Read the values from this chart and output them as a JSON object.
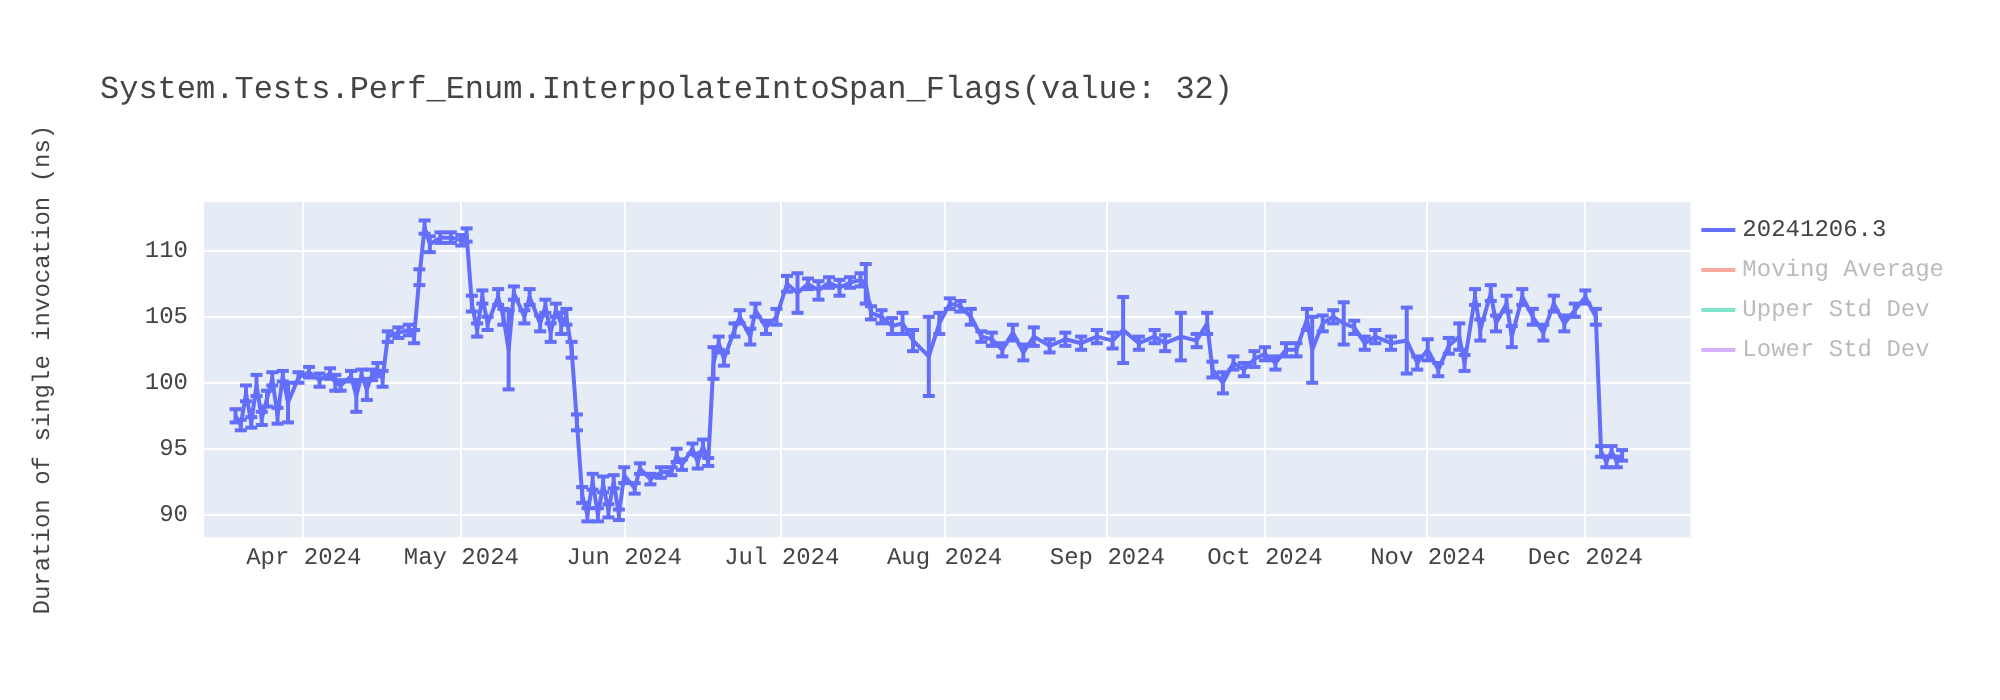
{
  "chart_data": {
    "type": "line",
    "title": "System.Tests.Perf_Enum.InterpolateIntoSpan_Flags(value: 32)",
    "ylabel": "Duration of single invocation (ns)",
    "x": [
      "2024-03-19",
      "2024-03-20",
      "2024-03-21",
      "2024-03-22",
      "2024-03-23",
      "2024-03-24",
      "2024-03-25",
      "2024-03-26",
      "2024-03-27",
      "2024-03-28",
      "2024-03-29",
      "2024-03-31",
      "2024-04-02",
      "2024-04-04",
      "2024-04-06",
      "2024-04-07",
      "2024-04-08",
      "2024-04-10",
      "2024-04-11",
      "2024-04-12",
      "2024-04-13",
      "2024-04-14",
      "2024-04-15",
      "2024-04-16",
      "2024-04-17",
      "2024-04-19",
      "2024-04-21",
      "2024-04-22",
      "2024-04-23",
      "2024-04-24",
      "2024-04-25",
      "2024-04-27",
      "2024-04-29",
      "2024-05-01",
      "2024-05-02",
      "2024-05-03",
      "2024-05-04",
      "2024-05-05",
      "2024-05-06",
      "2024-05-08",
      "2024-05-09",
      "2024-05-10",
      "2024-05-11",
      "2024-05-13",
      "2024-05-14",
      "2024-05-16",
      "2024-05-17",
      "2024-05-18",
      "2024-05-19",
      "2024-05-20",
      "2024-05-21",
      "2024-05-22",
      "2024-05-23",
      "2024-05-24",
      "2024-05-25",
      "2024-05-26",
      "2024-05-27",
      "2024-05-28",
      "2024-05-29",
      "2024-05-30",
      "2024-05-31",
      "2024-06-01",
      "2024-06-03",
      "2024-06-04",
      "2024-06-06",
      "2024-06-08",
      "2024-06-10",
      "2024-06-11",
      "2024-06-12",
      "2024-06-14",
      "2024-06-15",
      "2024-06-16",
      "2024-06-17",
      "2024-06-18",
      "2024-06-19",
      "2024-06-20",
      "2024-06-22",
      "2024-06-23",
      "2024-06-25",
      "2024-06-26",
      "2024-06-28",
      "2024-06-30",
      "2024-07-02",
      "2024-07-04",
      "2024-07-06",
      "2024-07-08",
      "2024-07-10",
      "2024-07-12",
      "2024-07-14",
      "2024-07-16",
      "2024-07-17",
      "2024-07-18",
      "2024-07-20",
      "2024-07-22",
      "2024-07-24",
      "2024-07-26",
      "2024-07-29",
      "2024-07-31",
      "2024-08-02",
      "2024-08-04",
      "2024-08-06",
      "2024-08-08",
      "2024-08-10",
      "2024-08-12",
      "2024-08-14",
      "2024-08-16",
      "2024-08-18",
      "2024-08-21",
      "2024-08-24",
      "2024-08-27",
      "2024-08-30",
      "2024-09-02",
      "2024-09-04",
      "2024-09-07",
      "2024-09-10",
      "2024-09-12",
      "2024-09-15",
      "2024-09-18",
      "2024-09-20",
      "2024-09-21",
      "2024-09-23",
      "2024-09-25",
      "2024-09-27",
      "2024-09-29",
      "2024-10-01",
      "2024-10-03",
      "2024-10-05",
      "2024-10-07",
      "2024-10-09",
      "2024-10-10",
      "2024-10-12",
      "2024-10-14",
      "2024-10-16",
      "2024-10-18",
      "2024-10-20",
      "2024-10-22",
      "2024-10-25",
      "2024-10-28",
      "2024-10-30",
      "2024-11-01",
      "2024-11-03",
      "2024-11-05",
      "2024-11-07",
      "2024-11-08",
      "2024-11-10",
      "2024-11-11",
      "2024-11-13",
      "2024-11-14",
      "2024-11-16",
      "2024-11-17",
      "2024-11-19",
      "2024-11-21",
      "2024-11-23",
      "2024-11-25",
      "2024-11-27",
      "2024-11-29",
      "2024-12-01",
      "2024-12-03",
      "2024-12-04",
      "2024-12-05",
      "2024-12-06",
      "2024-12-07",
      "2024-12-08"
    ],
    "series": [
      {
        "name": "20241206.3",
        "color": "#636efa",
        "values": [
          97.5,
          96.8,
          99.2,
          97.0,
          99.8,
          97.3,
          98.8,
          100.3,
          97.5,
          100.5,
          98.5,
          100.4,
          100.8,
          100.2,
          100.7,
          100.0,
          99.8,
          100.5,
          99.0,
          100.6,
          99.5,
          100.6,
          101.0,
          100.3,
          103.5,
          103.8,
          104.0,
          103.5,
          108.0,
          111.8,
          110.5,
          111.0,
          111.0,
          110.8,
          111.2,
          106.0,
          104.0,
          106.5,
          104.5,
          106.5,
          105.0,
          102.5,
          106.8,
          105.0,
          106.5,
          104.5,
          105.8,
          103.8,
          105.5,
          104.5,
          105.0,
          102.5,
          97.0,
          91.5,
          90.0,
          92.5,
          90.0,
          92.3,
          90.3,
          92.5,
          90.0,
          93.0,
          92.0,
          93.5,
          92.7,
          93.2,
          93.3,
          94.5,
          93.8,
          95.0,
          94.0,
          95.2,
          94.0,
          101.5,
          103.0,
          101.8,
          104.0,
          105.0,
          103.5,
          105.5,
          104.2,
          105.0,
          107.5,
          106.8,
          107.5,
          107.0,
          107.6,
          107.2,
          107.6,
          107.8,
          107.5,
          105.3,
          105.0,
          104.3,
          104.5,
          103.2,
          102.0,
          104.5,
          106.0,
          105.8,
          105.0,
          103.5,
          103.3,
          102.5,
          103.8,
          102.3,
          103.5,
          102.8,
          103.3,
          103.0,
          103.5,
          103.2,
          104.0,
          103.0,
          103.5,
          103.0,
          103.5,
          103.2,
          104.5,
          101.0,
          100.0,
          101.5,
          101.0,
          101.8,
          102.2,
          101.5,
          102.5,
          102.5,
          104.8,
          102.5,
          104.5,
          105.0,
          104.5,
          104.2,
          103.0,
          103.5,
          103.0,
          103.2,
          101.5,
          102.5,
          101.0,
          102.8,
          103.5,
          101.5,
          106.5,
          104.0,
          106.8,
          104.5,
          106.0,
          103.5,
          106.5,
          105.0,
          103.8,
          106.0,
          104.5,
          105.5,
          106.5,
          105.0,
          94.8,
          94.0,
          94.8,
          94.0,
          94.5
        ],
        "errors": [
          0.5,
          0.4,
          0.6,
          0.4,
          0.8,
          0.5,
          0.6,
          0.5,
          0.6,
          0.4,
          1.5,
          0.4,
          0.4,
          0.5,
          0.4,
          0.6,
          0.4,
          0.4,
          1.2,
          0.4,
          0.8,
          0.4,
          0.5,
          0.6,
          0.4,
          0.4,
          0.4,
          0.5,
          0.6,
          0.5,
          0.6,
          0.4,
          0.4,
          0.4,
          0.5,
          0.6,
          0.5,
          0.5,
          0.5,
          0.6,
          0.6,
          3.0,
          0.5,
          0.5,
          0.6,
          0.6,
          0.5,
          0.7,
          0.5,
          0.8,
          0.6,
          0.6,
          0.6,
          0.6,
          0.5,
          0.6,
          0.5,
          0.6,
          0.5,
          0.5,
          0.4,
          0.6,
          0.4,
          0.4,
          0.4,
          0.4,
          0.3,
          0.5,
          0.4,
          0.4,
          0.5,
          0.5,
          0.3,
          1.2,
          0.5,
          0.5,
          0.5,
          0.5,
          0.6,
          0.5,
          0.5,
          0.6,
          0.6,
          1.5,
          0.4,
          0.7,
          0.4,
          0.6,
          0.4,
          0.5,
          1.5,
          0.5,
          0.5,
          0.6,
          0.8,
          0.8,
          3.0,
          0.8,
          0.4,
          0.4,
          0.6,
          0.4,
          0.5,
          0.5,
          0.6,
          0.6,
          0.7,
          0.5,
          0.5,
          0.5,
          0.5,
          0.6,
          2.5,
          0.5,
          0.5,
          0.6,
          1.8,
          0.5,
          0.8,
          0.6,
          0.8,
          0.5,
          0.5,
          0.6,
          0.5,
          0.5,
          0.5,
          0.5,
          0.8,
          2.5,
          0.6,
          0.5,
          1.6,
          0.5,
          0.5,
          0.5,
          0.5,
          2.5,
          0.5,
          0.8,
          0.5,
          0.6,
          1.0,
          0.6,
          0.6,
          0.8,
          0.6,
          0.6,
          0.6,
          0.8,
          0.6,
          0.6,
          0.6,
          0.6,
          0.6,
          0.5,
          0.5,
          0.6,
          0.4,
          0.4,
          0.4,
          0.4,
          0.4
        ]
      },
      {
        "name": "Moving Average",
        "color": "#ef553b",
        "values": [
          null,
          null,
          null,
          null,
          null,
          null,
          null,
          null,
          null,
          null,
          null,
          null,
          null,
          null,
          null,
          null,
          null,
          null,
          null,
          null,
          null,
          null,
          null,
          null,
          null,
          null,
          null,
          null,
          null,
          null,
          null,
          null,
          null,
          null,
          null,
          null,
          null,
          null,
          null,
          null,
          null,
          null,
          null,
          null,
          null,
          null,
          null,
          null,
          null,
          null,
          null,
          null,
          null,
          null,
          null,
          null,
          null,
          null,
          null,
          null,
          null,
          null,
          null,
          null,
          null,
          null,
          null,
          null,
          null,
          null,
          null,
          null,
          null,
          null,
          null,
          null,
          null,
          null,
          null,
          null,
          null,
          null,
          null,
          null,
          null,
          null,
          null,
          null,
          null,
          null,
          null,
          null,
          null,
          null,
          null,
          null,
          null,
          null,
          null,
          null,
          null,
          null,
          null,
          null,
          null,
          null,
          null,
          null,
          null,
          null,
          null,
          null,
          null,
          null,
          null,
          null,
          null,
          null,
          null,
          null,
          null,
          null,
          null,
          null,
          null,
          null,
          null,
          null,
          null,
          null,
          null,
          null,
          null,
          null,
          null,
          null,
          null,
          null,
          null,
          null,
          null,
          null,
          null,
          null,
          null,
          null,
          null,
          null,
          null,
          null,
          null,
          null,
          null,
          null,
          null,
          null,
          null,
          null,
          null,
          null,
          null,
          null,
          null
        ]
      },
      {
        "name": "Upper Std Dev",
        "color": "#00cc96",
        "values": [
          null,
          null,
          null,
          null,
          null,
          null,
          null,
          null,
          null,
          null,
          null,
          null,
          null,
          null,
          null,
          null,
          null,
          null,
          null,
          null,
          null,
          null,
          null,
          null,
          null,
          null,
          null,
          null,
          null,
          null,
          null,
          null,
          null,
          null,
          null,
          null,
          null,
          null,
          null,
          null,
          null,
          null,
          null,
          null,
          null,
          null,
          null,
          null,
          null,
          null,
          null,
          null,
          null,
          null,
          null,
          null,
          null,
          null,
          null,
          null,
          null,
          null,
          null,
          null,
          null,
          null,
          null,
          null,
          null,
          null,
          null,
          null,
          null,
          null,
          null,
          null,
          null,
          null,
          null,
          null,
          null,
          null,
          null,
          null,
          null,
          null,
          null,
          null,
          null,
          null,
          null,
          null,
          null,
          null,
          null,
          null,
          null,
          null,
          null,
          null,
          null,
          null,
          null,
          null,
          null,
          null,
          null,
          null,
          null,
          null,
          null,
          null,
          null,
          null,
          null,
          null,
          null,
          null,
          null,
          null,
          null,
          null,
          null,
          null,
          null,
          null,
          null,
          null,
          null,
          null,
          null,
          null,
          null,
          null,
          null,
          null,
          null,
          null,
          null,
          null,
          null,
          null,
          null,
          null,
          null,
          null,
          null,
          null,
          null,
          null,
          null,
          null,
          null,
          null,
          null,
          null,
          null,
          null,
          null,
          null,
          null,
          null,
          null
        ]
      },
      {
        "name": "Lower Std Dev",
        "color": "#ab63fa",
        "values": [
          null,
          null,
          null,
          null,
          null,
          null,
          null,
          null,
          null,
          null,
          null,
          null,
          null,
          null,
          null,
          null,
          null,
          null,
          null,
          null,
          null,
          null,
          null,
          null,
          null,
          null,
          null,
          null,
          null,
          null,
          null,
          null,
          null,
          null,
          null,
          null,
          null,
          null,
          null,
          null,
          null,
          null,
          null,
          null,
          null,
          null,
          null,
          null,
          null,
          null,
          null,
          null,
          null,
          null,
          null,
          null,
          null,
          null,
          null,
          null,
          null,
          null,
          null,
          null,
          null,
          null,
          null,
          null,
          null,
          null,
          null,
          null,
          null,
          null,
          null,
          null,
          null,
          null,
          null,
          null,
          null,
          null,
          null,
          null,
          null,
          null,
          null,
          null,
          null,
          null,
          null,
          null,
          null,
          null,
          null,
          null,
          null,
          null,
          null,
          null,
          null,
          null,
          null,
          null,
          null,
          null,
          null,
          null,
          null,
          null,
          null,
          null,
          null,
          null,
          null,
          null,
          null,
          null,
          null,
          null,
          null,
          null,
          null,
          null,
          null,
          null,
          null,
          null,
          null,
          null,
          null,
          null,
          null,
          null,
          null,
          null,
          null,
          null,
          null,
          null,
          null,
          null,
          null,
          null,
          null,
          null,
          null,
          null,
          null,
          null,
          null,
          null,
          null,
          null,
          null,
          null,
          null,
          null,
          null,
          null,
          null,
          null,
          null
        ]
      }
    ],
    "xlim": [
      "2024-03-13",
      "2024-12-21"
    ],
    "xticks": [
      {
        "value": "2024-04-01",
        "label": "Apr 2024"
      },
      {
        "value": "2024-05-01",
        "label": "May 2024"
      },
      {
        "value": "2024-06-01",
        "label": "Jun 2024"
      },
      {
        "value": "2024-07-01",
        "label": "Jul 2024"
      },
      {
        "value": "2024-08-01",
        "label": "Aug 2024"
      },
      {
        "value": "2024-09-01",
        "label": "Sep 2024"
      },
      {
        "value": "2024-10-01",
        "label": "Oct 2024"
      },
      {
        "value": "2024-11-01",
        "label": "Nov 2024"
      },
      {
        "value": "2024-12-01",
        "label": "Dec 2024"
      }
    ],
    "ylim": [
      88.3,
      113.7
    ],
    "yticks": [
      90,
      95,
      100,
      105,
      110
    ],
    "grid": true,
    "legend": "top right",
    "marker": "none",
    "line_style": "solid"
  }
}
